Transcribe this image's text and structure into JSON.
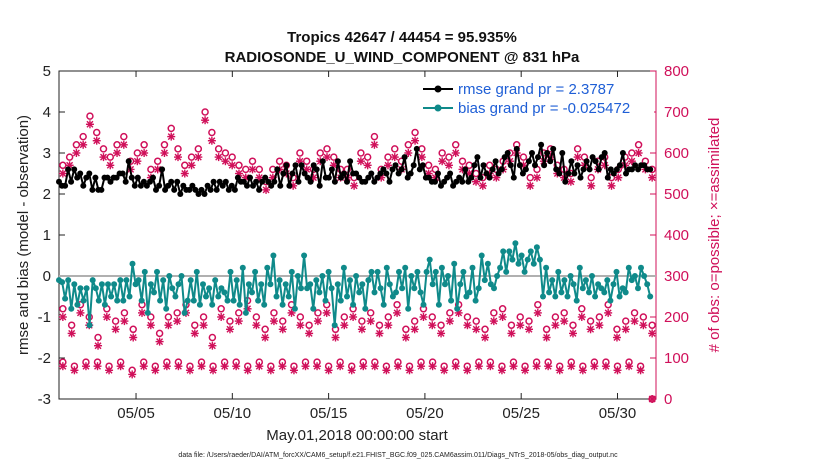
{
  "chart_data": {
    "type": "line",
    "title_line1": "Tropics 42647 / 44454 = 95.935%",
    "title_line2": "RADIOSONDE_U_WIND_COMPONENT @ 831 hPa",
    "xlabel": "May.01,2018 00:00:00 start",
    "ylabel_left": "rmse and bias (model - observation)",
    "ylabel_right": "# of obs: o=possible; ×=assimilated",
    "footnote": "data file: /Users/raeder/DAI/ATM_forcXX/CAM6_setup/f.e21.FHIST_BGC.f09_025.CAM6assim.011/Diags_NTrS_2018-05/obs_diag_output.nc",
    "x_range": [
      1,
      32
    ],
    "ylim_left": [
      -3,
      5
    ],
    "ylim_right": [
      0,
      800
    ],
    "x_ticks": [
      5,
      10,
      15,
      20,
      25,
      30
    ],
    "x_tick_labels": [
      "05/05",
      "05/10",
      "05/15",
      "05/20",
      "05/25",
      "05/30"
    ],
    "y_left_ticks": [
      -3,
      -2,
      -1,
      0,
      1,
      2,
      3,
      4,
      5
    ],
    "y_left_tick_labels": [
      "-3",
      "-2",
      "-1",
      "0",
      "1",
      "2",
      "3",
      "4",
      "5"
    ],
    "y_right_ticks": [
      0,
      100,
      200,
      300,
      400,
      500,
      600,
      700,
      800
    ],
    "y_right_tick_labels": [
      "0",
      "100",
      "200",
      "300",
      "400",
      "500",
      "600",
      "700",
      "800"
    ],
    "legend": [
      "rmse grand pr = 2.3787",
      "bias grand pr = -0.025472"
    ],
    "legend_position": "top-right",
    "colors": {
      "rmse": "#000000",
      "bias": "#0f8a8a",
      "obs": "#d0105a",
      "zero_line": "#b0b0b0"
    },
    "series": [
      {
        "name": "rmse",
        "axis": "left",
        "values": [
          2.3,
          2.2,
          2.2,
          2.6,
          2.3,
          2.6,
          2.4,
          2.5,
          2.2,
          2.4,
          2.5,
          2.1,
          2.4,
          2.1,
          2.1,
          2.4,
          2.4,
          2.3,
          2.4,
          2.4,
          2.5,
          2.5,
          2.3,
          2.8,
          2.4,
          2.2,
          2.4,
          2.2,
          2.3,
          2.2,
          2.3,
          2.4,
          2.1,
          2.2,
          2.6,
          2.1,
          2.2,
          2.3,
          2.1,
          2.3,
          2.0,
          2.2,
          2.1,
          2.1,
          2.2,
          2.1,
          2.0,
          2.1,
          2.0,
          2.2,
          2.1,
          2.3,
          2.1,
          2.3,
          2.2,
          2.3,
          2.1,
          2.2,
          2.1,
          2.4,
          2.3,
          2.3,
          2.2,
          2.4,
          2.2,
          2.3,
          2.1,
          2.3,
          2.4,
          2.3,
          2.2,
          2.3,
          2.6,
          2.2,
          2.5,
          2.7,
          2.2,
          2.5,
          2.7,
          2.3,
          2.7,
          2.5,
          2.4,
          2.3,
          2.7,
          2.6,
          2.2,
          2.8,
          2.4,
          2.4,
          2.6,
          2.3,
          2.8,
          2.4,
          2.5,
          2.3,
          2.8,
          2.5,
          2.5,
          2.4,
          2.3,
          2.3,
          2.4,
          2.5,
          2.3,
          2.4,
          2.5,
          2.6,
          2.5,
          2.3,
          2.6,
          2.7,
          2.5,
          2.6,
          2.9,
          2.4,
          2.5,
          2.7,
          3.1,
          2.6,
          2.7,
          2.4,
          2.4,
          2.3,
          2.3,
          2.5,
          2.2,
          2.3,
          2.4,
          2.5,
          2.2,
          2.3,
          2.4,
          2.3,
          2.6,
          2.3,
          2.4,
          2.7,
          2.9,
          2.4,
          2.7,
          2.5,
          2.4,
          2.6,
          2.8,
          2.5,
          2.6,
          2.9,
          3.0,
          2.7,
          2.4,
          3.1,
          2.7,
          2.5,
          2.6,
          2.8,
          3.0,
          2.7,
          2.9,
          3.2,
          2.7,
          3.0,
          2.8,
          3.1,
          2.6,
          2.5,
          3.0,
          2.3,
          2.5,
          2.8,
          2.5,
          2.7,
          2.4,
          2.6,
          2.8,
          2.6,
          2.9,
          2.8,
          2.6,
          2.9,
          3.0,
          2.4,
          2.6,
          2.5,
          2.6,
          2.7,
          3.0,
          2.5,
          2.6,
          2.6,
          2.7,
          2.6,
          2.7,
          2.7,
          2.6,
          2.6
        ]
      },
      {
        "name": "bias",
        "axis": "left",
        "values": [
          -0.1,
          -0.15,
          -0.55,
          -0.1,
          -0.8,
          -0.2,
          -0.7,
          -0.3,
          -0.6,
          -0.3,
          -1.2,
          -0.1,
          -0.3,
          -0.6,
          -0.2,
          -0.7,
          -0.2,
          -0.5,
          -0.2,
          -0.6,
          -0.1,
          -0.6,
          -0.1,
          -0.5,
          0.3,
          -0.2,
          -0.1,
          -0.6,
          0.1,
          -0.9,
          -0.2,
          -0.4,
          0.1,
          -0.6,
          -0.1,
          -0.8,
          0.0,
          -0.3,
          -0.5,
          -0.2,
          0.0,
          -0.9,
          -0.6,
          -0.1,
          -0.6,
          0.1,
          -0.7,
          -0.2,
          -0.5,
          -0.3,
          -0.7,
          -0.1,
          -0.5,
          -0.3,
          -0.4,
          -0.6,
          0.1,
          -0.6,
          -0.1,
          -0.7,
          0.2,
          -0.9,
          -0.2,
          -0.4,
          0.1,
          -0.6,
          -0.2,
          -0.7,
          0.2,
          -0.2,
          0.5,
          -0.5,
          -0.1,
          -0.7,
          -0.2,
          -0.5,
          0.1,
          -0.8,
          0.0,
          -0.3,
          0.5,
          -0.3,
          -0.2,
          -0.8,
          -0.1,
          -0.4,
          0.0,
          -0.6,
          0.1,
          -0.3,
          -1.2,
          -0.2,
          -0.6,
          0.2,
          -0.5,
          -0.1,
          -0.7,
          0.0,
          -0.4,
          -0.2,
          -0.8,
          -0.1,
          0.1,
          -0.4,
          0.1,
          -0.3,
          -0.7,
          0.2,
          -0.2,
          -0.5,
          -0.4,
          0.1,
          -0.3,
          0.2,
          -0.8,
          0.0,
          -0.3,
          0.1,
          -0.4,
          -0.7,
          0.1,
          0.4,
          -0.2,
          0.1,
          -0.7,
          0.2,
          -0.2,
          0.0,
          -0.6,
          0.3,
          -0.8,
          -0.2,
          0.1,
          -0.5,
          -0.4,
          0.2,
          -0.6,
          -0.3,
          0.5,
          -0.1,
          0.3,
          -0.2,
          -0.3,
          0.0,
          0.2,
          0.6,
          0.1,
          0.6,
          0.4,
          0.8,
          0.3,
          0.5,
          0.1,
          0.4,
          0.6,
          0.3,
          0.7,
          0.4,
          -0.5,
          0.2,
          -0.4,
          -0.1,
          -0.5,
          0.1,
          -0.4,
          -0.1,
          -0.5,
          0.0,
          -0.2,
          -0.6,
          0.2,
          -0.3,
          -0.1,
          -0.4,
          0.0,
          -0.5,
          -0.2,
          -0.3,
          -0.4,
          -0.1,
          -0.6,
          -0.2,
          0.1,
          -0.5,
          -0.3,
          -0.4,
          0.2,
          -0.1,
          0.0,
          -0.3,
          0.2,
          0.0,
          -0.2,
          -0.5
        ]
      },
      {
        "name": "obs_possible_upper",
        "axis": "right",
        "values": [
          570,
          590,
          620,
          640,
          690,
          650,
          610,
          590,
          620,
          640,
          580,
          600,
          620,
          560,
          580,
          620,
          660,
          610,
          570,
          590,
          610,
          700,
          650,
          610,
          600,
          590,
          570,
          560,
          580,
          560,
          530,
          560,
          580,
          570,
          540,
          600,
          580,
          560,
          600,
          610,
          590,
          560,
          560,
          540,
          600,
          590,
          640,
          560,
          590,
          610,
          580,
          620,
          650,
          610,
          570,
          560,
          600,
          590,
          620,
          580,
          570,
          550,
          540,
          570,
          560,
          580,
          600,
          620,
          590,
          540,
          560,
          600,
          610,
          570,
          560,
          550,
          610,
          590,
          540,
          580,
          590,
          540,
          560,
          590,
          600,
          620,
          580,
          560
        ]
      },
      {
        "name": "obs_assimilated_upper",
        "axis": "right",
        "values": [
          550,
          570,
          600,
          620,
          670,
          630,
          590,
          570,
          600,
          620,
          560,
          580,
          600,
          540,
          560,
          600,
          640,
          590,
          550,
          570,
          590,
          680,
          630,
          590,
          580,
          570,
          550,
          540,
          560,
          540,
          510,
          540,
          560,
          550,
          520,
          580,
          560,
          540,
          580,
          590,
          570,
          540,
          540,
          520,
          580,
          570,
          620,
          540,
          570,
          590,
          560,
          600,
          630,
          590,
          550,
          540,
          580,
          570,
          600,
          560,
          550,
          530,
          520,
          550,
          540,
          560,
          580,
          600,
          570,
          520,
          540,
          580,
          590,
          550,
          540,
          530,
          590,
          570,
          520,
          560,
          570,
          520,
          540,
          570,
          580,
          600,
          560,
          540
        ]
      },
      {
        "name": "obs_possible_lower",
        "axis": "right",
        "values": [
          220,
          180,
          230,
          200,
          150,
          220,
          190,
          210,
          170,
          230,
          200,
          160,
          200,
          210,
          230,
          180,
          200,
          150,
          220,
          190,
          210,
          240,
          200,
          170,
          210,
          190,
          230,
          200,
          180,
          210,
          230,
          170,
          200,
          220,
          190,
          210,
          180,
          200,
          230,
          170,
          190,
          220,
          200,
          180,
          210,
          230,
          200,
          190,
          170,
          210,
          220,
          180,
          200,
          190,
          230,
          170,
          200,
          210,
          180,
          220,
          190,
          200,
          230,
          170,
          190,
          210,
          200,
          180
        ]
      },
      {
        "name": "obs_assimilated_lower",
        "axis": "right",
        "values": [
          200,
          160,
          210,
          180,
          130,
          200,
          170,
          190,
          150,
          210,
          180,
          140,
          180,
          190,
          210,
          160,
          180,
          130,
          200,
          170,
          190,
          220,
          180,
          150,
          190,
          170,
          210,
          180,
          160,
          190,
          210,
          150,
          180,
          200,
          170,
          190,
          160,
          180,
          210,
          150,
          170,
          200,
          180,
          160,
          190,
          210,
          180,
          170,
          150,
          190,
          200,
          160,
          180,
          170,
          210,
          150,
          180,
          190,
          160,
          200,
          170,
          180,
          210,
          150,
          170,
          190,
          180,
          160
        ]
      },
      {
        "name": "obs_possible_bottom",
        "axis": "right",
        "values": [
          90,
          80,
          90,
          90,
          80,
          90,
          70,
          90,
          80,
          90,
          90,
          80,
          90,
          80,
          90,
          90,
          80,
          90,
          80,
          90,
          80,
          90,
          90,
          80,
          90,
          80,
          90,
          90,
          80,
          90,
          80,
          90,
          90,
          80,
          90,
          80,
          90,
          90,
          80,
          90,
          80,
          90,
          90,
          80,
          90,
          80,
          90,
          90,
          80,
          90,
          80,
          0
        ]
      },
      {
        "name": "obs_assimilated_bottom",
        "axis": "right",
        "values": [
          80,
          70,
          80,
          80,
          70,
          80,
          60,
          80,
          70,
          80,
          80,
          70,
          80,
          70,
          80,
          80,
          70,
          80,
          70,
          80,
          70,
          80,
          80,
          70,
          80,
          70,
          80,
          80,
          70,
          80,
          70,
          80,
          80,
          70,
          80,
          70,
          80,
          80,
          70,
          80,
          70,
          80,
          80,
          70,
          80,
          70,
          80,
          80,
          70,
          80,
          70,
          0
        ]
      }
    ]
  }
}
